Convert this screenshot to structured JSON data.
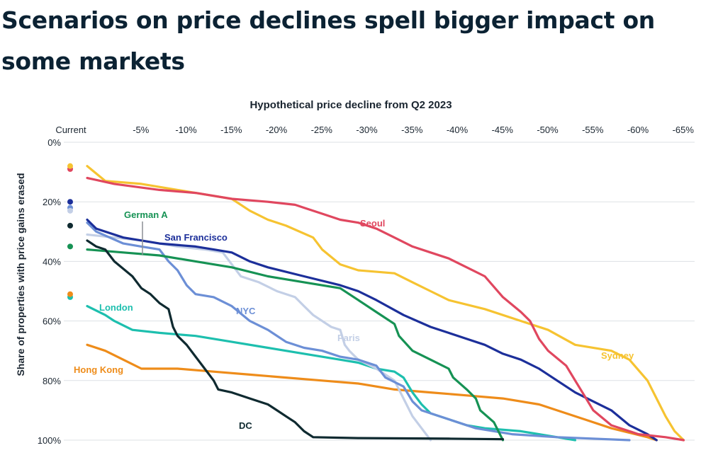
{
  "chart_data": {
    "type": "line",
    "title": "Scenarios on price declines spell bigger impact on some markets",
    "xlabel": "Hypothetical price decline from Q2 2023",
    "ylabel": "Share of properties with price gains erased",
    "x_ticks": [
      "Current",
      "-5%",
      "-10%",
      "-15%",
      "-20%",
      "-25%",
      "-30%",
      "-35%",
      "-40%",
      "-45%",
      "-50%",
      "-55%",
      "-60%",
      "-65%"
    ],
    "y_ticks": [
      "0%",
      "20%",
      "40%",
      "60%",
      "80%",
      "100%"
    ],
    "xlim": [
      0,
      65
    ],
    "ylim": [
      0,
      100
    ],
    "y_inverted": true,
    "grid": "horizontal",
    "legend": "direct-labels",
    "series": [
      {
        "name": "Seoul",
        "color": "#e0475f",
        "current": 9,
        "points": [
          [
            0,
            12
          ],
          [
            3,
            14
          ],
          [
            8,
            16
          ],
          [
            12,
            17
          ],
          [
            16,
            19
          ],
          [
            20,
            20
          ],
          [
            23,
            21
          ],
          [
            24,
            22
          ],
          [
            26,
            24
          ],
          [
            28,
            26
          ],
          [
            30,
            27
          ],
          [
            32,
            29
          ],
          [
            34,
            32
          ],
          [
            36,
            35
          ],
          [
            38,
            37
          ],
          [
            40,
            39
          ],
          [
            42,
            42
          ],
          [
            44,
            45
          ],
          [
            46,
            52
          ],
          [
            48,
            57
          ],
          [
            49,
            60
          ],
          [
            50,
            66
          ],
          [
            51,
            70
          ],
          [
            53,
            75
          ],
          [
            54,
            80
          ],
          [
            55,
            85
          ],
          [
            56,
            90
          ],
          [
            58,
            95
          ],
          [
            61,
            98
          ],
          [
            64,
            99
          ],
          [
            66,
            100
          ]
        ]
      },
      {
        "name": "Sydney",
        "color": "#f6c331",
        "current": 8,
        "points": [
          [
            0,
            8
          ],
          [
            2,
            13
          ],
          [
            6,
            14
          ],
          [
            10,
            16
          ],
          [
            14,
            18
          ],
          [
            16,
            19
          ],
          [
            18,
            23
          ],
          [
            20,
            26
          ],
          [
            22,
            28
          ],
          [
            25,
            32
          ],
          [
            26,
            36
          ],
          [
            28,
            41
          ],
          [
            30,
            43
          ],
          [
            34,
            44
          ],
          [
            36,
            47
          ],
          [
            38,
            50
          ],
          [
            40,
            53
          ],
          [
            44,
            56
          ],
          [
            48,
            60
          ],
          [
            51,
            63
          ],
          [
            54,
            68
          ],
          [
            58,
            70
          ],
          [
            60,
            73
          ],
          [
            62,
            80
          ],
          [
            63,
            86
          ],
          [
            64,
            92
          ],
          [
            65,
            97
          ],
          [
            66,
            100
          ]
        ]
      },
      {
        "name": "San Francisco",
        "color": "#1c2f9a",
        "current": 20,
        "points": [
          [
            0,
            26
          ],
          [
            1,
            29
          ],
          [
            4,
            32
          ],
          [
            8,
            34
          ],
          [
            12,
            35
          ],
          [
            14,
            36
          ],
          [
            16,
            37
          ],
          [
            18,
            40
          ],
          [
            20,
            42
          ],
          [
            24,
            45
          ],
          [
            28,
            48
          ],
          [
            30,
            50
          ],
          [
            32,
            53
          ],
          [
            35,
            58
          ],
          [
            38,
            62
          ],
          [
            40,
            64
          ],
          [
            42,
            66
          ],
          [
            44,
            68
          ],
          [
            46,
            71
          ],
          [
            48,
            73
          ],
          [
            50,
            76
          ],
          [
            52,
            80
          ],
          [
            54,
            84
          ],
          [
            56,
            87
          ],
          [
            58,
            90
          ],
          [
            60,
            95
          ],
          [
            62,
            98
          ],
          [
            63,
            100
          ]
        ]
      },
      {
        "name": "German A",
        "color": "#169254",
        "current": 35,
        "points": [
          [
            0,
            36
          ],
          [
            4,
            37
          ],
          [
            8,
            38
          ],
          [
            12,
            40
          ],
          [
            16,
            42
          ],
          [
            20,
            45
          ],
          [
            24,
            47
          ],
          [
            28,
            49
          ],
          [
            30,
            53
          ],
          [
            32,
            57
          ],
          [
            34,
            61
          ],
          [
            34.5,
            65
          ],
          [
            36,
            70
          ],
          [
            38,
            73
          ],
          [
            40,
            76
          ],
          [
            40.5,
            79
          ],
          [
            42,
            83
          ],
          [
            43,
            86
          ],
          [
            43.5,
            90
          ],
          [
            45,
            94
          ],
          [
            46,
            100
          ]
        ]
      },
      {
        "name": "NYC",
        "color": "#6c8fd6",
        "current": 22,
        "points": [
          [
            0,
            27
          ],
          [
            1,
            30
          ],
          [
            4,
            34
          ],
          [
            6,
            35
          ],
          [
            8,
            36
          ],
          [
            9,
            40
          ],
          [
            10,
            43
          ],
          [
            11,
            48
          ],
          [
            12,
            51
          ],
          [
            14,
            52
          ],
          [
            16,
            55
          ],
          [
            18,
            60
          ],
          [
            20,
            63
          ],
          [
            22,
            67
          ],
          [
            24,
            69
          ],
          [
            26,
            70
          ],
          [
            28,
            72
          ],
          [
            30,
            73
          ],
          [
            32,
            75
          ],
          [
            33,
            79
          ],
          [
            35,
            82
          ],
          [
            36,
            87
          ],
          [
            37,
            90
          ],
          [
            40,
            93
          ],
          [
            43,
            96
          ],
          [
            47,
            98
          ],
          [
            52,
            99
          ],
          [
            60,
            100
          ]
        ]
      },
      {
        "name": "Paris",
        "color": "#c3cfe6",
        "current": 23,
        "points": [
          [
            0,
            31
          ],
          [
            3,
            32
          ],
          [
            6,
            33
          ],
          [
            10,
            35
          ],
          [
            13,
            36
          ],
          [
            15,
            37
          ],
          [
            17,
            45
          ],
          [
            19,
            47
          ],
          [
            21,
            50
          ],
          [
            23,
            52
          ],
          [
            24,
            55
          ],
          [
            25,
            58
          ],
          [
            27,
            62
          ],
          [
            28,
            63
          ],
          [
            28.5,
            68
          ],
          [
            29,
            70
          ],
          [
            30,
            73
          ],
          [
            32,
            76
          ],
          [
            34,
            80
          ],
          [
            35,
            86
          ],
          [
            36,
            92
          ],
          [
            37,
            96
          ],
          [
            38,
            100
          ]
        ]
      },
      {
        "name": "London",
        "color": "#1dbfae",
        "current": 52,
        "points": [
          [
            0,
            55
          ],
          [
            2,
            58
          ],
          [
            3,
            60
          ],
          [
            5,
            63
          ],
          [
            8,
            64
          ],
          [
            12,
            65
          ],
          [
            16,
            67
          ],
          [
            20,
            69
          ],
          [
            24,
            71
          ],
          [
            28,
            73
          ],
          [
            30,
            74
          ],
          [
            32,
            76
          ],
          [
            34,
            77
          ],
          [
            35,
            79
          ],
          [
            36,
            84
          ],
          [
            37,
            88
          ],
          [
            38,
            91
          ],
          [
            40,
            93
          ],
          [
            42,
            95
          ],
          [
            44,
            96
          ],
          [
            48,
            97
          ],
          [
            52,
            99
          ],
          [
            54,
            100
          ]
        ]
      },
      {
        "name": "Hong Kong",
        "color": "#ee8c1a",
        "current": 51,
        "points": [
          [
            0,
            68
          ],
          [
            2,
            70
          ],
          [
            4,
            73
          ],
          [
            6,
            76
          ],
          [
            10,
            76
          ],
          [
            14,
            77
          ],
          [
            18,
            78
          ],
          [
            22,
            79
          ],
          [
            26,
            80
          ],
          [
            30,
            81
          ],
          [
            34,
            83
          ],
          [
            38,
            84
          ],
          [
            42,
            85
          ],
          [
            46,
            86
          ],
          [
            50,
            88
          ],
          [
            52,
            90
          ],
          [
            55,
            93
          ],
          [
            58,
            96
          ],
          [
            62,
            99
          ],
          [
            63,
            100
          ]
        ]
      },
      {
        "name": "DC",
        "color": "#0f2a30",
        "current": 28,
        "points": [
          [
            0,
            33
          ],
          [
            1,
            35
          ],
          [
            2,
            36
          ],
          [
            3,
            40
          ],
          [
            5,
            45
          ],
          [
            6,
            49
          ],
          [
            7,
            51
          ],
          [
            8,
            54
          ],
          [
            9,
            56
          ],
          [
            9.5,
            62
          ],
          [
            10,
            65
          ],
          [
            11,
            68
          ],
          [
            12,
            72
          ],
          [
            13,
            76
          ],
          [
            14,
            80
          ],
          [
            14.5,
            83
          ],
          [
            16,
            84
          ],
          [
            18,
            86
          ],
          [
            20,
            88
          ],
          [
            21,
            90
          ],
          [
            22,
            92
          ],
          [
            23,
            94
          ],
          [
            24,
            97
          ],
          [
            25,
            99
          ],
          [
            30,
            99.3
          ],
          [
            40,
            99.5
          ],
          [
            46,
            99.7
          ]
        ]
      }
    ]
  }
}
